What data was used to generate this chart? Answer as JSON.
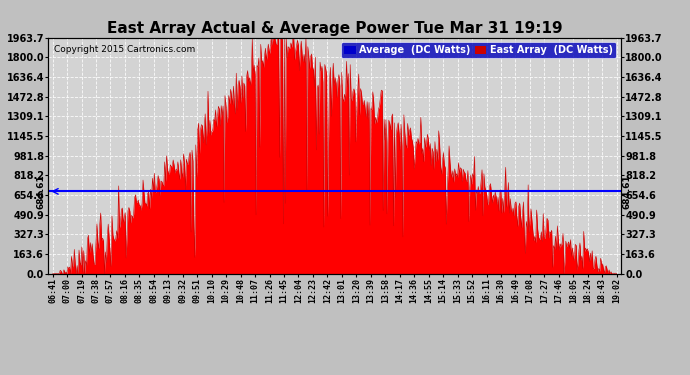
{
  "title": "East Array Actual & Average Power Tue Mar 31 19:19",
  "copyright": "Copyright 2015 Cartronics.com",
  "legend_labels": [
    "Average  (DC Watts)",
    "East Array  (DC Watts)"
  ],
  "legend_colors": [
    "#0000cc",
    "#cc0000"
  ],
  "avg_value": 684.61,
  "y_max": 1963.7,
  "y_min": 0.0,
  "y_ticks": [
    0.0,
    163.6,
    327.3,
    490.9,
    654.6,
    818.2,
    981.8,
    1145.5,
    1309.1,
    1472.8,
    1636.4,
    1800.0,
    1963.7
  ],
  "fill_color": "#ff0000",
  "avg_line_color": "#0000ff",
  "title_fontsize": 11,
  "copyright_fontsize": 7,
  "fig_bg": "#c0c0c0",
  "plot_bg": "#d3d3d3",
  "x_tick_labels": [
    "06:41",
    "07:00",
    "07:19",
    "07:38",
    "07:57",
    "08:16",
    "08:35",
    "08:54",
    "09:13",
    "09:32",
    "09:51",
    "10:10",
    "10:29",
    "10:48",
    "11:07",
    "11:26",
    "11:45",
    "12:04",
    "12:23",
    "12:42",
    "13:01",
    "13:20",
    "13:39",
    "13:58",
    "14:17",
    "14:36",
    "14:55",
    "15:14",
    "15:33",
    "15:52",
    "16:11",
    "16:30",
    "16:49",
    "17:08",
    "17:27",
    "17:46",
    "18:05",
    "18:24",
    "18:43",
    "19:02"
  ],
  "num_points": 600
}
